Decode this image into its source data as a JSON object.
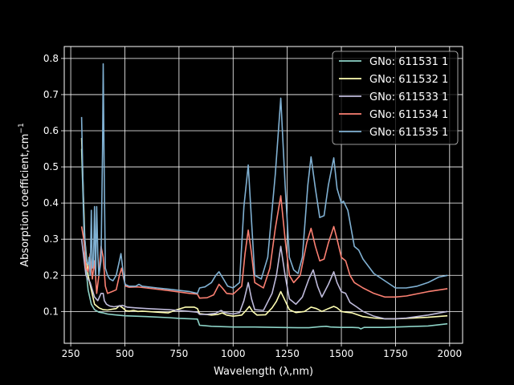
{
  "chart_data": {
    "type": "line",
    "title": "",
    "xlabel": "Wavelength (λ,nm)",
    "ylabel_main": "Absorption coefficient,cm",
    "ylabel_sup": "−1",
    "xlim": [
      220,
      2060
    ],
    "ylim": [
      0.012,
      0.833
    ],
    "xticks": [
      250,
      500,
      750,
      1000,
      1250,
      1500,
      1750,
      2000
    ],
    "yticks": [
      0.1,
      0.2,
      0.3,
      0.4,
      0.5,
      0.6,
      0.7,
      0.8
    ],
    "grid": true,
    "legend_position": "top-right",
    "series": [
      {
        "name": "GNo: 611531 1",
        "color": "#8dd3c7",
        "points": [
          [
            300,
            0.55
          ],
          [
            315,
            0.25
          ],
          [
            330,
            0.16
          ],
          [
            345,
            0.12
          ],
          [
            360,
            0.105
          ],
          [
            380,
            0.098
          ],
          [
            400,
            0.096
          ],
          [
            420,
            0.093
          ],
          [
            450,
            0.091
          ],
          [
            500,
            0.088
          ],
          [
            600,
            0.086
          ],
          [
            700,
            0.083
          ],
          [
            750,
            0.081
          ],
          [
            800,
            0.08
          ],
          [
            835,
            0.079
          ],
          [
            845,
            0.062
          ],
          [
            900,
            0.059
          ],
          [
            1000,
            0.057
          ],
          [
            1100,
            0.057
          ],
          [
            1200,
            0.056
          ],
          [
            1300,
            0.055
          ],
          [
            1350,
            0.055
          ],
          [
            1400,
            0.058
          ],
          [
            1430,
            0.059
          ],
          [
            1450,
            0.057
          ],
          [
            1500,
            0.056
          ],
          [
            1550,
            0.056
          ],
          [
            1580,
            0.055
          ],
          [
            1590,
            0.052
          ],
          [
            1605,
            0.056
          ],
          [
            1650,
            0.056
          ],
          [
            1700,
            0.056
          ],
          [
            1800,
            0.058
          ],
          [
            1900,
            0.06
          ],
          [
            1990,
            0.066
          ]
        ]
      },
      {
        "name": "GNo: 611532 1",
        "color": "#ffffb3",
        "points": [
          [
            300,
            0.58
          ],
          [
            315,
            0.3
          ],
          [
            330,
            0.2
          ],
          [
            345,
            0.16
          ],
          [
            360,
            0.12
          ],
          [
            380,
            0.11
          ],
          [
            400,
            0.105
          ],
          [
            420,
            0.104
          ],
          [
            440,
            0.106
          ],
          [
            460,
            0.108
          ],
          [
            475,
            0.116
          ],
          [
            490,
            0.11
          ],
          [
            505,
            0.102
          ],
          [
            520,
            0.101
          ],
          [
            540,
            0.103
          ],
          [
            560,
            0.1
          ],
          [
            580,
            0.101
          ],
          [
            650,
            0.098
          ],
          [
            700,
            0.096
          ],
          [
            740,
            0.105
          ],
          [
            780,
            0.112
          ],
          [
            820,
            0.112
          ],
          [
            835,
            0.108
          ],
          [
            845,
            0.094
          ],
          [
            900,
            0.09
          ],
          [
            930,
            0.092
          ],
          [
            950,
            0.096
          ],
          [
            970,
            0.09
          ],
          [
            1000,
            0.087
          ],
          [
            1040,
            0.09
          ],
          [
            1060,
            0.103
          ],
          [
            1075,
            0.114
          ],
          [
            1090,
            0.1
          ],
          [
            1110,
            0.09
          ],
          [
            1150,
            0.091
          ],
          [
            1180,
            0.11
          ],
          [
            1200,
            0.128
          ],
          [
            1220,
            0.155
          ],
          [
            1240,
            0.13
          ],
          [
            1260,
            0.105
          ],
          [
            1290,
            0.097
          ],
          [
            1330,
            0.1
          ],
          [
            1360,
            0.112
          ],
          [
            1385,
            0.108
          ],
          [
            1410,
            0.1
          ],
          [
            1440,
            0.108
          ],
          [
            1465,
            0.114
          ],
          [
            1480,
            0.11
          ],
          [
            1500,
            0.1
          ],
          [
            1520,
            0.098
          ],
          [
            1550,
            0.096
          ],
          [
            1600,
            0.086
          ],
          [
            1650,
            0.082
          ],
          [
            1700,
            0.08
          ],
          [
            1750,
            0.08
          ],
          [
            1800,
            0.081
          ],
          [
            1900,
            0.084
          ],
          [
            1990,
            0.088
          ]
        ]
      },
      {
        "name": "GNo: 611533 1",
        "color": "#bebada",
        "points": [
          [
            300,
            0.3
          ],
          [
            310,
            0.25
          ],
          [
            320,
            0.2
          ],
          [
            330,
            0.19
          ],
          [
            340,
            0.18
          ],
          [
            350,
            0.16
          ],
          [
            360,
            0.14
          ],
          [
            375,
            0.13
          ],
          [
            390,
            0.15
          ],
          [
            400,
            0.15
          ],
          [
            405,
            0.13
          ],
          [
            415,
            0.12
          ],
          [
            430,
            0.115
          ],
          [
            450,
            0.113
          ],
          [
            470,
            0.115
          ],
          [
            490,
            0.117
          ],
          [
            510,
            0.112
          ],
          [
            550,
            0.11
          ],
          [
            600,
            0.108
          ],
          [
            700,
            0.105
          ],
          [
            750,
            0.103
          ],
          [
            800,
            0.1
          ],
          [
            835,
            0.098
          ],
          [
            845,
            0.092
          ],
          [
            880,
            0.092
          ],
          [
            920,
            0.095
          ],
          [
            945,
            0.103
          ],
          [
            960,
            0.097
          ],
          [
            1000,
            0.093
          ],
          [
            1030,
            0.097
          ],
          [
            1050,
            0.13
          ],
          [
            1070,
            0.18
          ],
          [
            1085,
            0.135
          ],
          [
            1100,
            0.105
          ],
          [
            1140,
            0.103
          ],
          [
            1180,
            0.15
          ],
          [
            1200,
            0.2
          ],
          [
            1220,
            0.28
          ],
          [
            1240,
            0.2
          ],
          [
            1260,
            0.135
          ],
          [
            1290,
            0.12
          ],
          [
            1320,
            0.14
          ],
          [
            1350,
            0.19
          ],
          [
            1370,
            0.215
          ],
          [
            1390,
            0.17
          ],
          [
            1410,
            0.14
          ],
          [
            1440,
            0.175
          ],
          [
            1465,
            0.21
          ],
          [
            1480,
            0.18
          ],
          [
            1500,
            0.155
          ],
          [
            1520,
            0.15
          ],
          [
            1540,
            0.125
          ],
          [
            1570,
            0.113
          ],
          [
            1600,
            0.1
          ],
          [
            1650,
            0.087
          ],
          [
            1700,
            0.08
          ],
          [
            1750,
            0.08
          ],
          [
            1800,
            0.082
          ],
          [
            1900,
            0.09
          ],
          [
            1990,
            0.1
          ]
        ]
      },
      {
        "name": "GNo: 611534 1",
        "color": "#fb8072",
        "points": [
          [
            300,
            0.335
          ],
          [
            310,
            0.3
          ],
          [
            320,
            0.22
          ],
          [
            330,
            0.21
          ],
          [
            340,
            0.26
          ],
          [
            350,
            0.19
          ],
          [
            360,
            0.24
          ],
          [
            370,
            0.15
          ],
          [
            380,
            0.2
          ],
          [
            390,
            0.28
          ],
          [
            400,
            0.25
          ],
          [
            410,
            0.17
          ],
          [
            420,
            0.15
          ],
          [
            440,
            0.155
          ],
          [
            460,
            0.16
          ],
          [
            475,
            0.2
          ],
          [
            485,
            0.22
          ],
          [
            495,
            0.19
          ],
          [
            505,
            0.17
          ],
          [
            520,
            0.167
          ],
          [
            560,
            0.168
          ],
          [
            600,
            0.165
          ],
          [
            700,
            0.158
          ],
          [
            800,
            0.15
          ],
          [
            835,
            0.148
          ],
          [
            845,
            0.137
          ],
          [
            880,
            0.138
          ],
          [
            910,
            0.146
          ],
          [
            935,
            0.175
          ],
          [
            950,
            0.165
          ],
          [
            970,
            0.15
          ],
          [
            1000,
            0.148
          ],
          [
            1040,
            0.17
          ],
          [
            1055,
            0.26
          ],
          [
            1070,
            0.325
          ],
          [
            1085,
            0.26
          ],
          [
            1100,
            0.18
          ],
          [
            1140,
            0.165
          ],
          [
            1170,
            0.22
          ],
          [
            1195,
            0.33
          ],
          [
            1220,
            0.42
          ],
          [
            1240,
            0.3
          ],
          [
            1260,
            0.2
          ],
          [
            1280,
            0.18
          ],
          [
            1310,
            0.2
          ],
          [
            1340,
            0.29
          ],
          [
            1360,
            0.33
          ],
          [
            1380,
            0.28
          ],
          [
            1400,
            0.24
          ],
          [
            1420,
            0.245
          ],
          [
            1440,
            0.29
          ],
          [
            1465,
            0.335
          ],
          [
            1480,
            0.3
          ],
          [
            1500,
            0.25
          ],
          [
            1520,
            0.24
          ],
          [
            1540,
            0.2
          ],
          [
            1560,
            0.18
          ],
          [
            1600,
            0.165
          ],
          [
            1650,
            0.15
          ],
          [
            1700,
            0.14
          ],
          [
            1750,
            0.14
          ],
          [
            1800,
            0.143
          ],
          [
            1900,
            0.155
          ],
          [
            1990,
            0.163
          ]
        ]
      },
      {
        "name": "GNo: 611535 1",
        "color": "#80b1d3",
        "points": [
          [
            300,
            0.638
          ],
          [
            305,
            0.5
          ],
          [
            310,
            0.36
          ],
          [
            315,
            0.3
          ],
          [
            322,
            0.24
          ],
          [
            330,
            0.23
          ],
          [
            335,
            0.25
          ],
          [
            340,
            0.2
          ],
          [
            345,
            0.38
          ],
          [
            350,
            0.22
          ],
          [
            355,
            0.23
          ],
          [
            360,
            0.39
          ],
          [
            365,
            0.2
          ],
          [
            370,
            0.39
          ],
          [
            375,
            0.26
          ],
          [
            380,
            0.2
          ],
          [
            390,
            0.24
          ],
          [
            397,
            0.55
          ],
          [
            400,
            0.785
          ],
          [
            405,
            0.45
          ],
          [
            410,
            0.22
          ],
          [
            420,
            0.2
          ],
          [
            430,
            0.19
          ],
          [
            445,
            0.185
          ],
          [
            460,
            0.2
          ],
          [
            475,
            0.24
          ],
          [
            482,
            0.26
          ],
          [
            490,
            0.22
          ],
          [
            500,
            0.175
          ],
          [
            520,
            0.17
          ],
          [
            550,
            0.17
          ],
          [
            565,
            0.175
          ],
          [
            580,
            0.17
          ],
          [
            650,
            0.165
          ],
          [
            700,
            0.162
          ],
          [
            800,
            0.155
          ],
          [
            835,
            0.15
          ],
          [
            845,
            0.165
          ],
          [
            870,
            0.168
          ],
          [
            900,
            0.18
          ],
          [
            920,
            0.2
          ],
          [
            935,
            0.21
          ],
          [
            950,
            0.195
          ],
          [
            975,
            0.17
          ],
          [
            1000,
            0.165
          ],
          [
            1030,
            0.18
          ],
          [
            1050,
            0.39
          ],
          [
            1070,
            0.505
          ],
          [
            1085,
            0.35
          ],
          [
            1100,
            0.2
          ],
          [
            1130,
            0.19
          ],
          [
            1160,
            0.25
          ],
          [
            1195,
            0.48
          ],
          [
            1220,
            0.69
          ],
          [
            1240,
            0.45
          ],
          [
            1260,
            0.25
          ],
          [
            1280,
            0.215
          ],
          [
            1300,
            0.205
          ],
          [
            1320,
            0.25
          ],
          [
            1345,
            0.45
          ],
          [
            1360,
            0.528
          ],
          [
            1380,
            0.44
          ],
          [
            1400,
            0.36
          ],
          [
            1420,
            0.365
          ],
          [
            1440,
            0.45
          ],
          [
            1465,
            0.525
          ],
          [
            1480,
            0.44
          ],
          [
            1500,
            0.4
          ],
          [
            1510,
            0.405
          ],
          [
            1530,
            0.38
          ],
          [
            1560,
            0.28
          ],
          [
            1580,
            0.27
          ],
          [
            1600,
            0.245
          ],
          [
            1650,
            0.205
          ],
          [
            1700,
            0.185
          ],
          [
            1750,
            0.165
          ],
          [
            1800,
            0.165
          ],
          [
            1850,
            0.17
          ],
          [
            1900,
            0.18
          ],
          [
            1950,
            0.195
          ],
          [
            1990,
            0.2
          ]
        ]
      }
    ]
  }
}
